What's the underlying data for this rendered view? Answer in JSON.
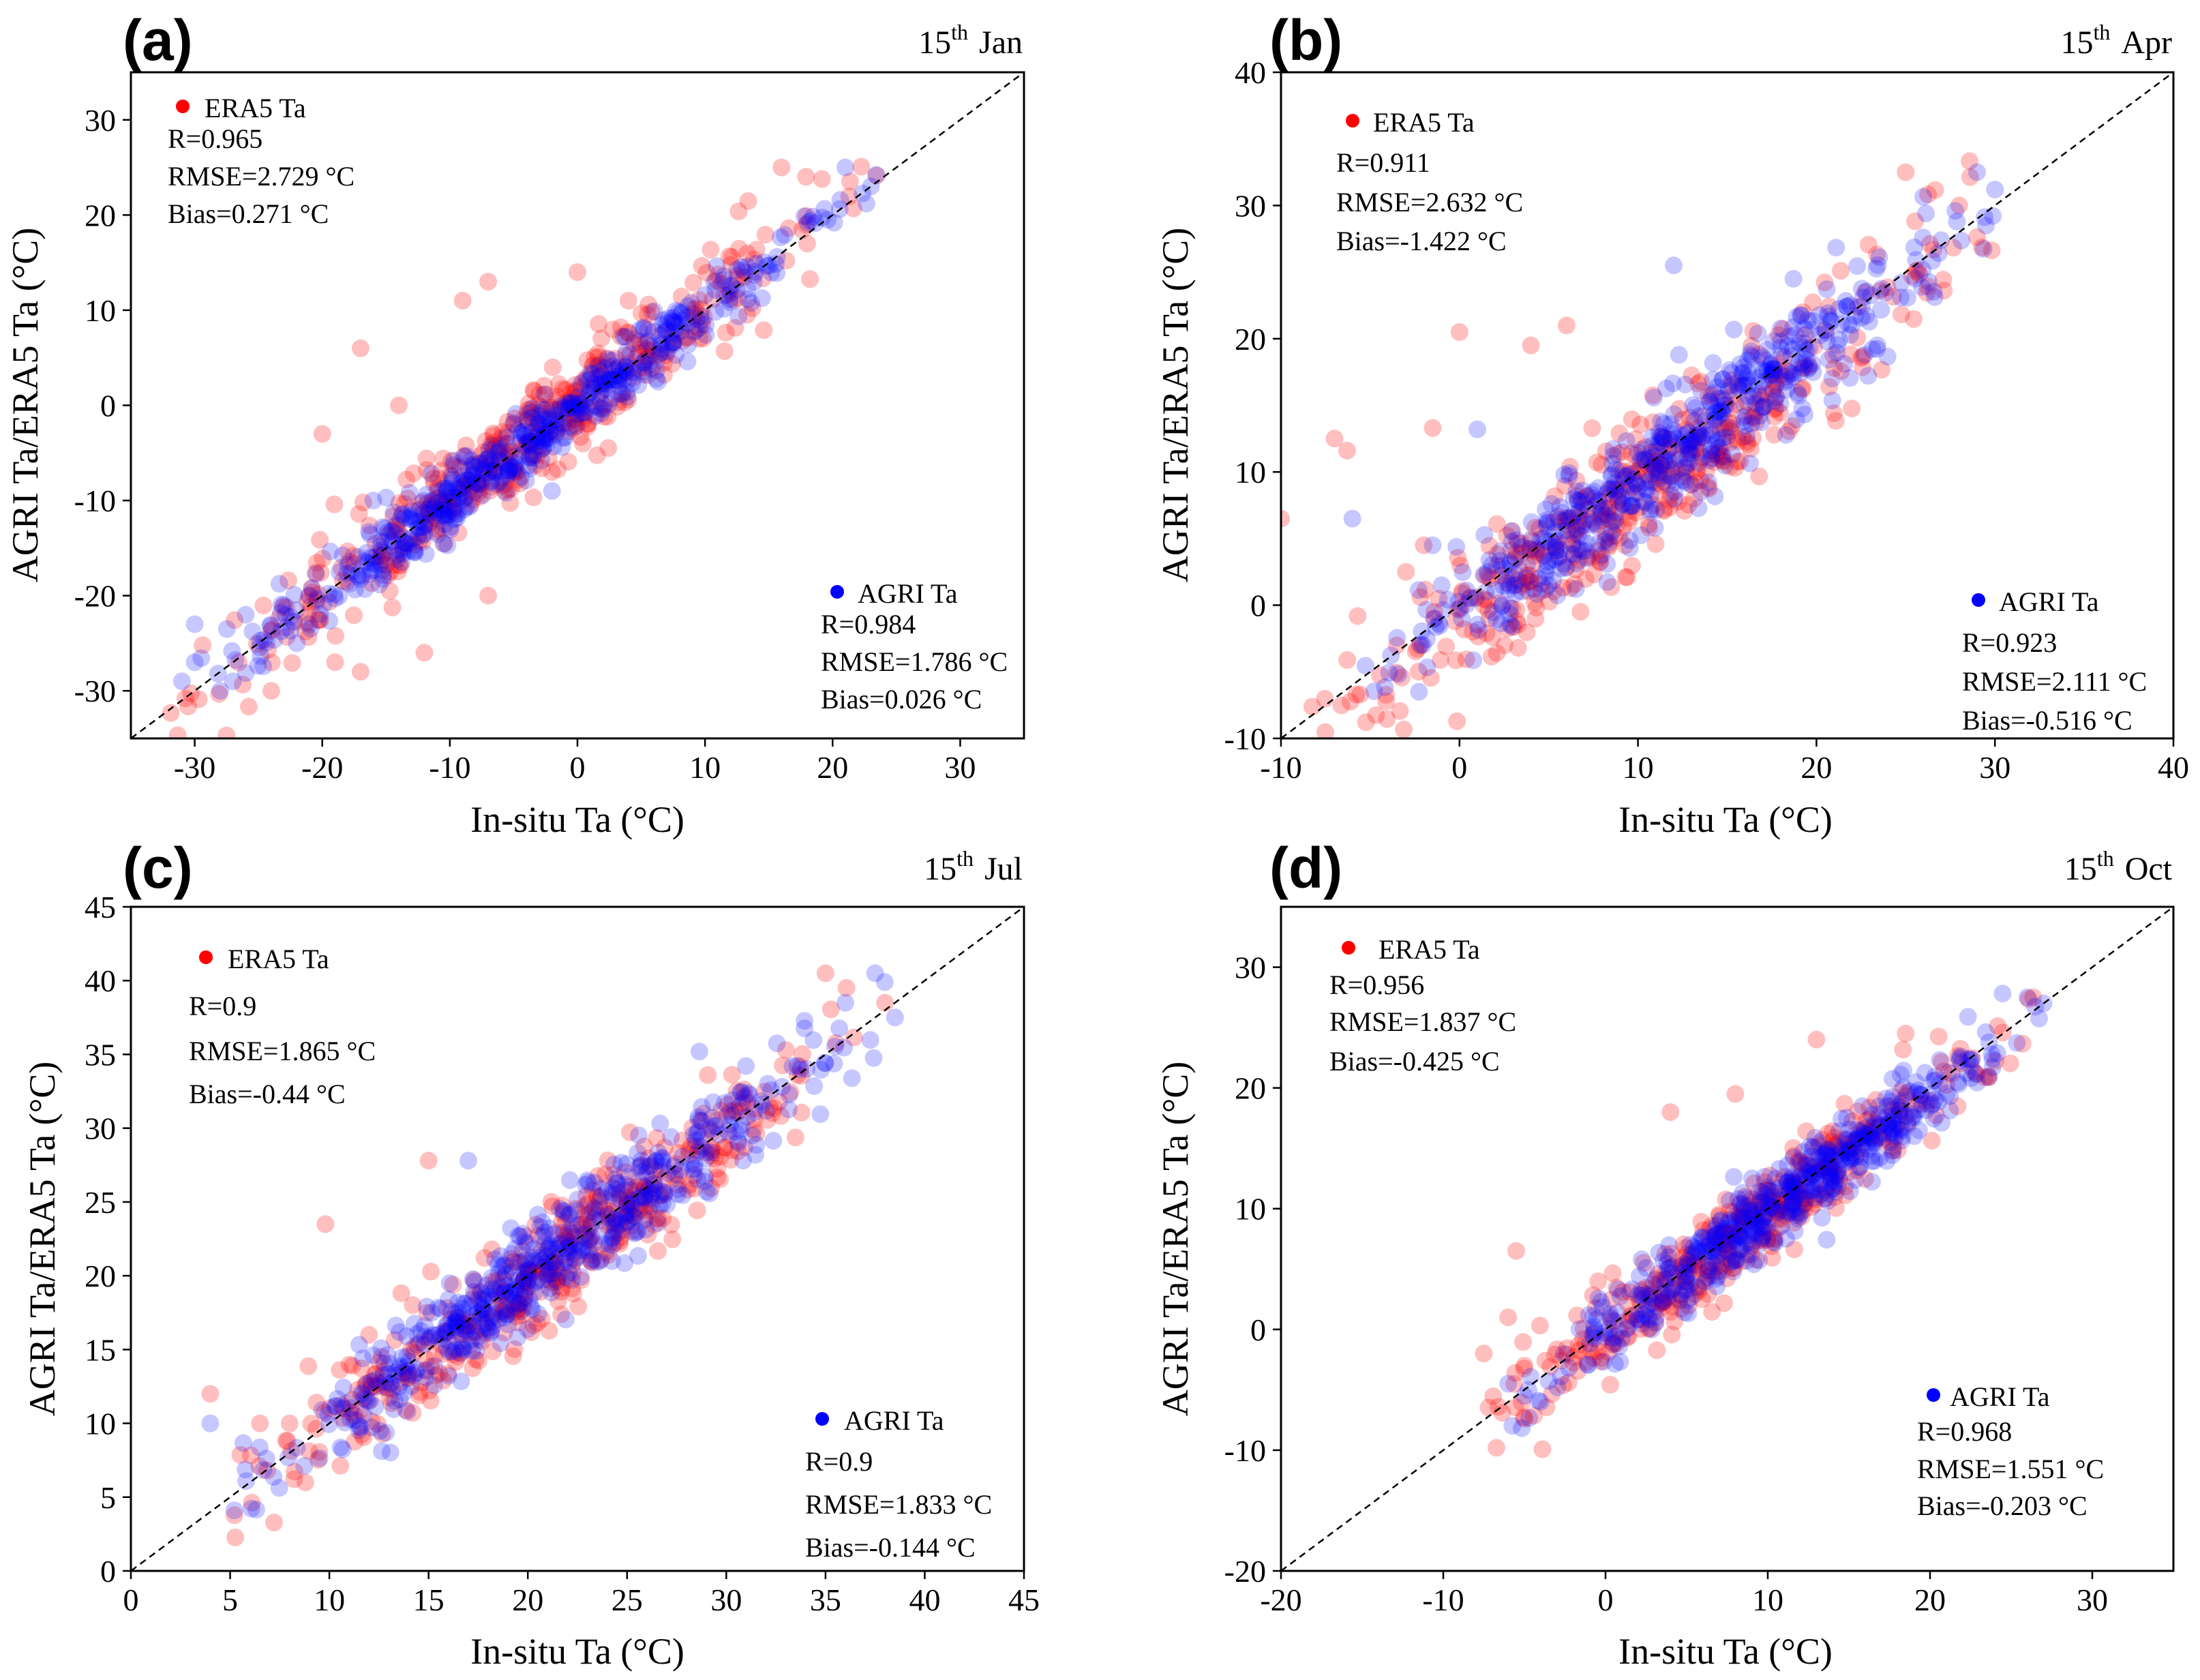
{
  "colors": {
    "era5": "#ff0000",
    "agri": "#0000ff",
    "frame": "#000000"
  },
  "panels": [
    {
      "label": "(a)",
      "date_day": "15",
      "date_suffix": "th",
      "date_month": "Jan",
      "xlabel": "In-situ Ta (°C)",
      "ylabel": "AGRI Ta/ERA5 Ta (°C)",
      "era5": {
        "legend": "ERA5 Ta",
        "r": "R=0.965",
        "rmse": "RMSE=2.729 °C",
        "bias": "Bias=0.271 °C"
      },
      "agri": {
        "legend": "AGRI Ta",
        "r": "R=0.984",
        "rmse": "RMSE=1.786 °C",
        "bias": "Bias=0.026 °C"
      }
    },
    {
      "label": "(b)",
      "date_day": "15",
      "date_suffix": "th",
      "date_month": "Apr",
      "xlabel": "In-situ Ta (°C)",
      "ylabel": "AGRI Ta/ERA5 Ta (°C)",
      "era5": {
        "legend": "ERA5 Ta",
        "r": "R=0.911",
        "rmse": "RMSE=2.632 °C",
        "bias": "Bias=-1.422 °C"
      },
      "agri": {
        "legend": "AGRI Ta",
        "r": "R=0.923",
        "rmse": "RMSE=2.111 °C",
        "bias": "Bias=-0.516 °C"
      }
    },
    {
      "label": "(c)",
      "date_day": "15",
      "date_suffix": "th",
      "date_month": "Jul",
      "xlabel": "In-situ Ta (°C)",
      "ylabel": "AGRI Ta/ERA5 Ta (°C)",
      "era5": {
        "legend": "ERA5 Ta",
        "r": "R=0.9",
        "rmse": "RMSE=1.865 °C",
        "bias": "Bias=-0.44 °C"
      },
      "agri": {
        "legend": "AGRI Ta",
        "r": "R=0.9",
        "rmse": "RMSE=1.833 °C",
        "bias": "Bias=-0.144 °C"
      }
    },
    {
      "label": "(d)",
      "date_day": "15",
      "date_suffix": "th",
      "date_month": "Oct",
      "xlabel": "In-situ Ta (°C)",
      "ylabel": "AGRI Ta/ERA5 Ta (°C)",
      "era5": {
        "legend": "ERA5 Ta",
        "r": "R=0.956",
        "rmse": "RMSE=1.837 °C",
        "bias": "Bias=-0.425 °C"
      },
      "agri": {
        "legend": "AGRI Ta",
        "r": "R=0.968",
        "rmse": "RMSE=1.551 °C",
        "bias": "Bias=-0.203 °C"
      }
    }
  ],
  "chart_data": [
    {
      "type": "scatter",
      "title": "15th Jan",
      "xlabel": "In-situ Ta (°C)",
      "ylabel": "AGRI Ta/ERA5 Ta (°C)",
      "xlim": [
        -35,
        35
      ],
      "ylim": [
        -35,
        35
      ],
      "xticks": [
        "-30",
        "-20",
        "-10",
        "0",
        "10",
        "20",
        "30"
      ],
      "yticks": [
        "-30",
        "-20",
        "-10",
        "0",
        "10",
        "20",
        "30"
      ],
      "reference_line": "1:1 dashed",
      "series": [
        {
          "name": "ERA5 Ta",
          "color": "#ff0000",
          "n_points": 420,
          "x_range": [
            -32,
            24
          ],
          "spread": 2.7,
          "bias": 0.271,
          "points": [
            [
              -20,
              -3
            ],
            [
              -17,
              6
            ],
            [
              -14,
              0
            ],
            [
              -9,
              11
            ],
            [
              -7,
              13
            ],
            [
              0,
              14
            ],
            [
              -24,
              -30
            ],
            [
              -19,
              -27
            ],
            [
              -17,
              -28
            ],
            [
              -12,
              -26
            ],
            [
              -7,
              -20
            ],
            [
              -2,
              -7
            ],
            [
              16,
              25
            ],
            [
              18,
              17
            ],
            [
              4,
              11
            ],
            [
              -5,
              -2
            ]
          ]
        },
        {
          "name": "AGRI Ta",
          "color": "#0000ff",
          "n_points": 520,
          "x_range": [
            -31,
            24
          ],
          "spread": 1.8,
          "bias": 0.026,
          "points": [
            [
              -31,
              -29
            ],
            [
              -30,
              -27
            ],
            [
              -28,
              -30
            ],
            [
              -27,
              -29
            ],
            [
              -30,
              -23
            ],
            [
              -26,
              -22
            ],
            [
              -22,
              -25
            ],
            [
              -16,
              -10
            ],
            [
              -2,
              -9
            ],
            [
              21,
              25
            ],
            [
              23,
              23
            ],
            [
              -23,
              -21
            ]
          ]
        }
      ],
      "legend_stats": {
        "ERA5 Ta": {
          "R": 0.965,
          "RMSE": 2.729,
          "Bias": 0.271
        },
        "AGRI Ta": {
          "R": 0.984,
          "RMSE": 1.786,
          "Bias": 0.026
        }
      }
    },
    {
      "type": "scatter",
      "title": "15th Apr",
      "xlabel": "In-situ Ta (°C)",
      "ylabel": "AGRI Ta/ERA5 Ta (°C)",
      "xlim": [
        -10,
        40
      ],
      "ylim": [
        -10,
        40
      ],
      "xticks": [
        "-10",
        "0",
        "10",
        "20",
        "30",
        "40"
      ],
      "yticks": [
        "-10",
        "0",
        "10",
        "20",
        "30",
        "40"
      ],
      "reference_line": "1:1 dashed",
      "series": [
        {
          "name": "ERA5 Ta",
          "color": "#ff0000",
          "n_points": 420,
          "x_range": [
            -10,
            30
          ],
          "spread": 2.6,
          "bias": -1.422,
          "points": [
            [
              -10,
              6.5
            ],
            [
              -7,
              12.5
            ],
            [
              -6.3,
              11.6
            ],
            [
              -1.5,
              13.3
            ],
            [
              -2,
              4.5
            ],
            [
              0,
              20.5
            ],
            [
              -3,
              2.5
            ],
            [
              4,
              19.5
            ],
            [
              6,
              21
            ],
            [
              25,
              32.5
            ],
            [
              28,
              30
            ],
            [
              4,
              1.8
            ]
          ]
        },
        {
          "name": "AGRI Ta",
          "color": "#0000ff",
          "n_points": 520,
          "x_range": [
            -6,
            30
          ],
          "spread": 2.1,
          "bias": -0.516,
          "points": [
            [
              -6,
              6.5
            ],
            [
              -1.5,
              4.5
            ],
            [
              -1,
              1.5
            ],
            [
              1,
              13.2
            ],
            [
              5,
              1.5
            ],
            [
              29,
              32.5
            ],
            [
              30,
              31.2
            ],
            [
              12,
              25.5
            ]
          ]
        }
      ],
      "legend_stats": {
        "ERA5 Ta": {
          "R": 0.911,
          "RMSE": 2.632,
          "Bias": -1.422
        },
        "AGRI Ta": {
          "R": 0.923,
          "RMSE": 2.111,
          "Bias": -0.516
        }
      }
    },
    {
      "type": "scatter",
      "title": "15th Jul",
      "xlabel": "In-situ Ta (°C)",
      "ylabel": "AGRI Ta/ERA5 Ta (°C)",
      "xlim": [
        0,
        45
      ],
      "ylim": [
        0,
        45
      ],
      "xticks": [
        "0",
        "5",
        "10",
        "15",
        "20",
        "25",
        "30",
        "35",
        "40",
        "45"
      ],
      "yticks": [
        "0",
        "5",
        "10",
        "15",
        "20",
        "25",
        "30",
        "35",
        "40",
        "45"
      ],
      "reference_line": "1:1 dashed",
      "series": [
        {
          "name": "ERA5 Ta",
          "color": "#ff0000",
          "n_points": 420,
          "x_range": [
            4,
            38
          ],
          "spread": 1.9,
          "bias": -0.44,
          "points": [
            [
              4,
              12
            ],
            [
              6.5,
              10
            ],
            [
              9.8,
              23.5
            ],
            [
              15,
              27.8
            ],
            [
              35,
              40.5
            ],
            [
              38,
              38.5
            ],
            [
              8,
              10
            ],
            [
              12,
              16
            ]
          ]
        },
        {
          "name": "AGRI Ta",
          "color": "#0000ff",
          "n_points": 520,
          "x_range": [
            4,
            38
          ],
          "spread": 1.8,
          "bias": -0.144,
          "points": [
            [
              4,
              10
            ],
            [
              37.5,
              40.5
            ],
            [
              36,
              38.5
            ],
            [
              38.5,
              37.5
            ],
            [
              11.5,
              9.8
            ],
            [
              17,
              27.8
            ]
          ]
        }
      ],
      "legend_stats": {
        "ERA5 Ta": {
          "R": 0.9,
          "RMSE": 1.865,
          "Bias": -0.44
        },
        "AGRI Ta": {
          "R": 0.9,
          "RMSE": 1.833,
          "Bias": -0.144
        }
      }
    },
    {
      "type": "scatter",
      "title": "15th Oct",
      "xlabel": "In-situ Ta (°C)",
      "ylabel": "AGRI Ta/ERA5 Ta (°C)",
      "xlim": [
        -20,
        35
      ],
      "ylim": [
        -20,
        35
      ],
      "xticks": [
        "-20",
        "-10",
        "0",
        "10",
        "20",
        "30"
      ],
      "yticks": [
        "-20",
        "-10",
        "0",
        "10",
        "20",
        "30"
      ],
      "reference_line": "1:1 dashed",
      "series": [
        {
          "name": "ERA5 Ta",
          "color": "#ff0000",
          "n_points": 420,
          "x_range": [
            -8,
            27
          ],
          "spread": 1.8,
          "bias": -0.425,
          "points": [
            [
              -5.5,
              6.5
            ],
            [
              -7.5,
              -2
            ],
            [
              -6,
              1
            ],
            [
              -5,
              -3
            ],
            [
              13,
              24
            ],
            [
              18.5,
              24.5
            ],
            [
              4,
              18
            ],
            [
              8,
              19.5
            ]
          ]
        },
        {
          "name": "AGRI Ta",
          "color": "#0000ff",
          "n_points": 520,
          "x_range": [
            -6,
            27
          ],
          "spread": 1.6,
          "bias": -0.203,
          "points": [
            [
              -6,
              -4.5
            ],
            [
              -5,
              -5.5
            ],
            [
              -4,
              -6
            ],
            [
              26,
              27.5
            ],
            [
              27,
              27
            ]
          ]
        }
      ],
      "legend_stats": {
        "ERA5 Ta": {
          "R": 0.956,
          "RMSE": 1.837,
          "Bias": -0.425
        },
        "AGRI Ta": {
          "R": 0.968,
          "RMSE": 1.551,
          "Bias": -0.203
        }
      }
    }
  ]
}
